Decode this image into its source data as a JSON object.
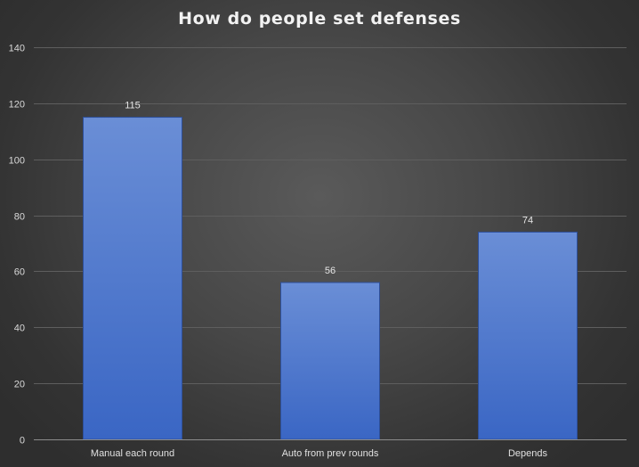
{
  "chart_data": {
    "type": "bar",
    "title": "How do people set defenses",
    "xlabel": "",
    "ylabel": "",
    "categories": [
      "Manual each round",
      "Auto from prev rounds",
      "Depends"
    ],
    "values": [
      115,
      56,
      74
    ],
    "ylim": [
      0,
      140
    ],
    "yticks": [
      0,
      20,
      40,
      60,
      80,
      100,
      120,
      140
    ],
    "grid": true,
    "data_labels": true,
    "legend": "none",
    "colors": {
      "bar_top": "#6a8ed6",
      "bar_bottom": "#3a66c4",
      "bar_edge": "#2d4f9a",
      "gridline": "#5e5e5e",
      "axis": "#8c8c8c"
    }
  }
}
